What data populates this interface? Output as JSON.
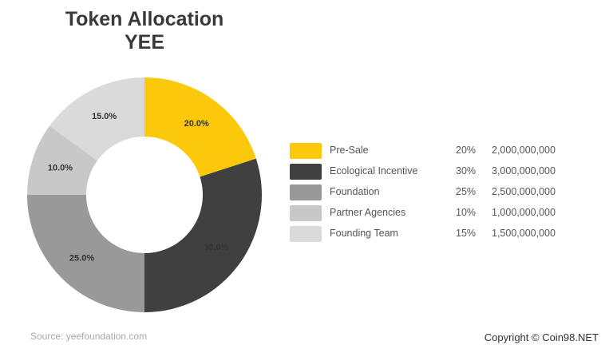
{
  "title": {
    "line1": "Token Allocation",
    "line2": "YEE"
  },
  "chart_data": {
    "type": "pie",
    "categories": [
      "Pre-Sale",
      "Ecological Incentive",
      "Foundation",
      "Partner Agencies",
      "Founding Team"
    ],
    "values": [
      20,
      30,
      25,
      10,
      15
    ],
    "slice_labels": [
      "20.0%",
      "30.0%",
      "25.0%",
      "10.0%",
      "15.0%"
    ],
    "colors": [
      "#fcc80a",
      "#404040",
      "#999999",
      "#c8c8c8",
      "#dadada"
    ],
    "donut": true
  },
  "legend": [
    {
      "label": "Pre-Sale",
      "percent": "20%",
      "amount": "2,000,000,000"
    },
    {
      "label": "Ecological Incentive",
      "percent": "30%",
      "amount": "3,000,000,000"
    },
    {
      "label": "Foundation",
      "percent": "25%",
      "amount": "2,500,000,000"
    },
    {
      "label": "Partner Agencies",
      "percent": "10%",
      "amount": "1,000,000,000"
    },
    {
      "label": "Founding Team",
      "percent": "15%",
      "amount": "1,500,000,000"
    }
  ],
  "footer": {
    "source": "Source: yeefoundation.com",
    "copyright": "Copyright © Coin98.NET"
  }
}
